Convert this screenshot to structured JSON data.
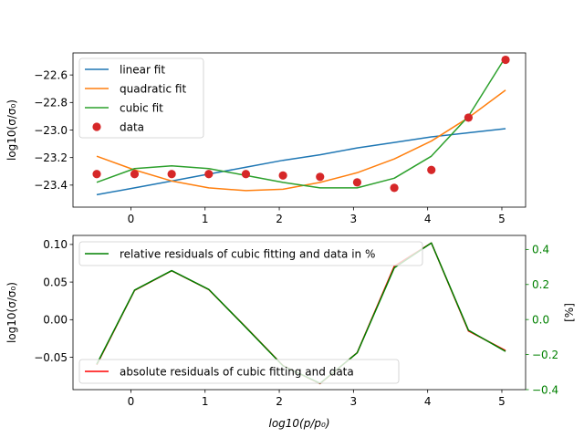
{
  "chart_data": [
    {
      "type": "line",
      "ylabel": "log10(σ/σ₀)",
      "xlim": [
        -0.78,
        5.32
      ],
      "ylim": [
        -23.56,
        -22.44
      ],
      "x_ticks": [
        0,
        1,
        2,
        3,
        4,
        5
      ],
      "x_tick_labels": [
        "0",
        "1",
        "2",
        "3",
        "4",
        "5"
      ],
      "y_ticks": [
        -23.4,
        -23.2,
        -23.0,
        -22.8,
        -22.6
      ],
      "y_tick_labels": [
        "−23.4",
        "−23.2",
        "−23.0",
        "−22.8",
        "−22.6"
      ],
      "grid": false,
      "legend_position": "top-left",
      "x": [
        -0.46,
        0.05,
        0.55,
        1.05,
        1.55,
        2.05,
        2.55,
        3.05,
        3.55,
        4.05,
        4.55,
        5.05
      ],
      "series": [
        {
          "name": "linear fit",
          "kind": "line",
          "color": "#1f77b4",
          "values": [
            -23.47,
            -23.42,
            -23.37,
            -23.32,
            -23.27,
            -23.22,
            -23.18,
            -23.13,
            -23.09,
            -23.05,
            -23.02,
            -22.99
          ]
        },
        {
          "name": "quadratic fit",
          "kind": "line",
          "color": "#ff7f0e",
          "values": [
            -23.19,
            -23.29,
            -23.37,
            -23.42,
            -23.44,
            -23.43,
            -23.38,
            -23.31,
            -23.21,
            -23.08,
            -22.91,
            -22.71
          ]
        },
        {
          "name": "cubic fit",
          "kind": "line",
          "color": "#2ca02c",
          "values": [
            -23.38,
            -23.28,
            -23.26,
            -23.28,
            -23.33,
            -23.38,
            -23.42,
            -23.42,
            -23.35,
            -23.19,
            -22.9,
            -22.47
          ]
        },
        {
          "name": "data",
          "kind": "scatter",
          "color": "#d62728",
          "values": [
            -23.32,
            -23.32,
            -23.32,
            -23.32,
            -23.32,
            -23.33,
            -23.34,
            -23.38,
            -23.42,
            -23.29,
            -22.91,
            -22.49
          ]
        }
      ]
    },
    {
      "type": "line",
      "xlabel": "log10(p/p₀)",
      "ylabel": "log10(σ/σ₀)",
      "ylabel_right": "[%]",
      "xlim": [
        -0.78,
        5.32
      ],
      "ylim": [
        -0.093,
        0.112
      ],
      "ylim_right": [
        -0.4,
        0.48
      ],
      "x_ticks": [
        0,
        1,
        2,
        3,
        4,
        5
      ],
      "x_tick_labels": [
        "0",
        "1",
        "2",
        "3",
        "4",
        "5"
      ],
      "y_ticks": [
        -0.05,
        0.0,
        0.05,
        0.1
      ],
      "y_tick_labels": [
        "−0.05",
        "0.00",
        "0.05",
        "0.10"
      ],
      "y_ticks_right": [
        -0.4,
        -0.2,
        0.0,
        0.2,
        0.4
      ],
      "y_tick_labels_right": [
        "−0.4",
        "−0.2",
        "0.0",
        "0.2",
        "0.4"
      ],
      "grid": false,
      "right_axis_color": "#008000",
      "x": [
        -0.46,
        0.05,
        0.55,
        1.05,
        1.55,
        2.05,
        2.55,
        3.05,
        3.55,
        4.05,
        4.55,
        5.05
      ],
      "series": [
        {
          "name": "absolute residuals of cubic fitting and data",
          "axis": "left",
          "color": "#ff0000",
          "legend_position": "bottom-left",
          "values": [
            -0.06,
            0.039,
            0.065,
            0.04,
            -0.01,
            -0.061,
            -0.085,
            -0.044,
            0.071,
            0.102,
            -0.015,
            -0.041
          ]
        },
        {
          "name": "relative residuals of cubic fitting and data in %",
          "axis": "right",
          "color": "#008000",
          "legend_position": "top-left",
          "values": [
            -0.255,
            0.168,
            0.279,
            0.172,
            -0.045,
            -0.264,
            -0.364,
            -0.19,
            0.295,
            0.437,
            -0.061,
            -0.182
          ]
        }
      ]
    }
  ]
}
